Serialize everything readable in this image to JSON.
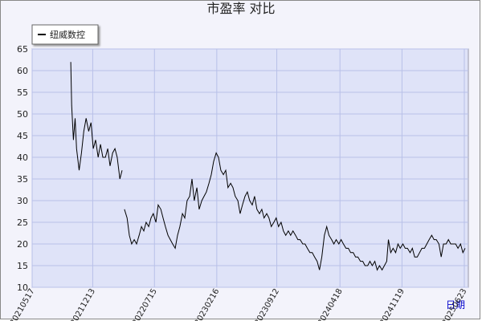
{
  "chart_data": {
    "type": "line",
    "title": "市盈率 对比",
    "x_label": "日期",
    "x": [
      "20210928",
      "20211001",
      "20211007",
      "20211013",
      "20211018",
      "20211027",
      "20211104",
      "20211112",
      "20211120",
      "20211129",
      "20211207",
      "20211215",
      "20211223",
      "20220101",
      "20220109",
      "20220117",
      "20220126",
      "20220203",
      "20220211",
      "20220220",
      "20220228",
      "20220308",
      "20220317",
      "20220325",
      "20220329",
      "20220402",
      "20220411",
      "20220419",
      "20220427",
      "20220506",
      "20220514",
      "20220523",
      "20220531",
      "20220608",
      "20220616",
      "20220625",
      "20220703",
      "20220711",
      "20220720",
      "20220728",
      "20220806",
      "20220814",
      "20220822",
      "20220831",
      "20220908",
      "20220916",
      "20220925",
      "20221003",
      "20221011",
      "20221020",
      "20221028",
      "20221105",
      "20221114",
      "20221122",
      "20221130",
      "20221209",
      "20221217",
      "20221226",
      "20230103",
      "20230111",
      "20230120",
      "20230128",
      "20230205",
      "20230214",
      "20230222",
      "20230302",
      "20230311",
      "20230319",
      "20230327",
      "20230405",
      "20230413",
      "20230421",
      "20230430",
      "20230508",
      "20230516",
      "20230525",
      "20230602",
      "20230610",
      "20230619",
      "20230627",
      "20230705",
      "20230714",
      "20230722",
      "20230730",
      "20230808",
      "20230816",
      "20230824",
      "20230902",
      "20230910",
      "20230918",
      "20230927",
      "20231005",
      "20231013",
      "20231022",
      "20231030",
      "20231107",
      "20231116",
      "20231124",
      "20231202",
      "20231211",
      "20231219",
      "20231227",
      "20240105",
      "20240113",
      "20240121",
      "20240130",
      "20240207",
      "20240215",
      "20240224",
      "20240303",
      "20240311",
      "20240320",
      "20240328",
      "20240405",
      "20240414",
      "20240422",
      "20240430",
      "20240509",
      "20240517",
      "20240525",
      "20240603",
      "20240611",
      "20240619",
      "20240628",
      "20240706",
      "20240714",
      "20240723",
      "20240731",
      "20240808",
      "20240817",
      "20240825",
      "20240902",
      "20240911",
      "20240919",
      "20240927",
      "20241003",
      "20241011",
      "20241019",
      "20241028",
      "20241105",
      "20241113",
      "20241122",
      "20241130",
      "20241208",
      "20241217",
      "20241225",
      "20250102",
      "20250111",
      "20250119",
      "20250127",
      "20250205",
      "20250213",
      "20250221",
      "20250302",
      "20250310",
      "20250318",
      "20250327",
      "20250404",
      "20250412",
      "20250421",
      "20250429",
      "20250507",
      "20250516",
      "20250524",
      "20250601",
      "20250610",
      "20250618",
      "20250626"
    ],
    "series": [
      {
        "name": "纽威数控",
        "color": "#000000",
        "values": [
          62,
          52,
          44,
          49,
          42,
          37,
          41,
          46,
          49,
          46,
          48,
          42,
          44,
          40,
          43,
          40,
          40,
          42,
          38,
          41,
          42,
          40,
          35,
          37,
          null,
          28,
          26,
          22,
          20,
          21,
          20,
          22,
          24,
          23,
          25,
          24,
          26,
          27,
          25,
          29,
          28,
          26,
          24,
          22,
          21,
          20,
          19,
          22,
          24,
          27,
          26,
          30,
          31,
          35,
          30,
          33,
          28,
          30,
          31,
          32,
          34,
          36,
          39,
          41,
          40,
          37,
          36,
          37,
          33,
          34,
          33,
          31,
          30,
          27,
          29,
          31,
          32,
          30,
          29,
          31,
          28,
          27,
          28,
          26,
          27,
          26,
          24,
          25,
          26,
          24,
          25,
          23,
          22,
          23,
          22,
          23,
          22,
          21,
          21,
          20,
          20,
          19,
          18,
          18,
          17,
          16,
          14,
          17,
          22,
          24,
          22,
          21,
          20,
          21,
          20,
          21,
          20,
          19,
          19,
          18,
          18,
          17,
          17,
          16,
          16,
          15,
          15,
          16,
          15,
          16,
          14,
          15,
          14,
          15,
          16,
          21,
          18,
          19,
          18,
          20,
          19,
          20,
          19,
          19,
          18,
          19,
          17,
          17,
          18,
          19,
          19,
          20,
          21,
          22,
          21,
          21,
          20,
          17,
          20,
          20,
          21,
          20,
          20,
          20,
          19,
          20,
          18,
          19
        ]
      }
    ],
    "xlim": [
      "20210517",
      "20250707"
    ],
    "xticks": [
      "20210517",
      "20211213",
      "20220715",
      "20230216",
      "20230912",
      "20240418",
      "20241119",
      "20250623"
    ],
    "ylim": [
      10,
      65
    ],
    "yticks": [
      10,
      15,
      20,
      25,
      30,
      35,
      40,
      45,
      50,
      55,
      60,
      65
    ],
    "grid": true,
    "legend": "top-left"
  }
}
